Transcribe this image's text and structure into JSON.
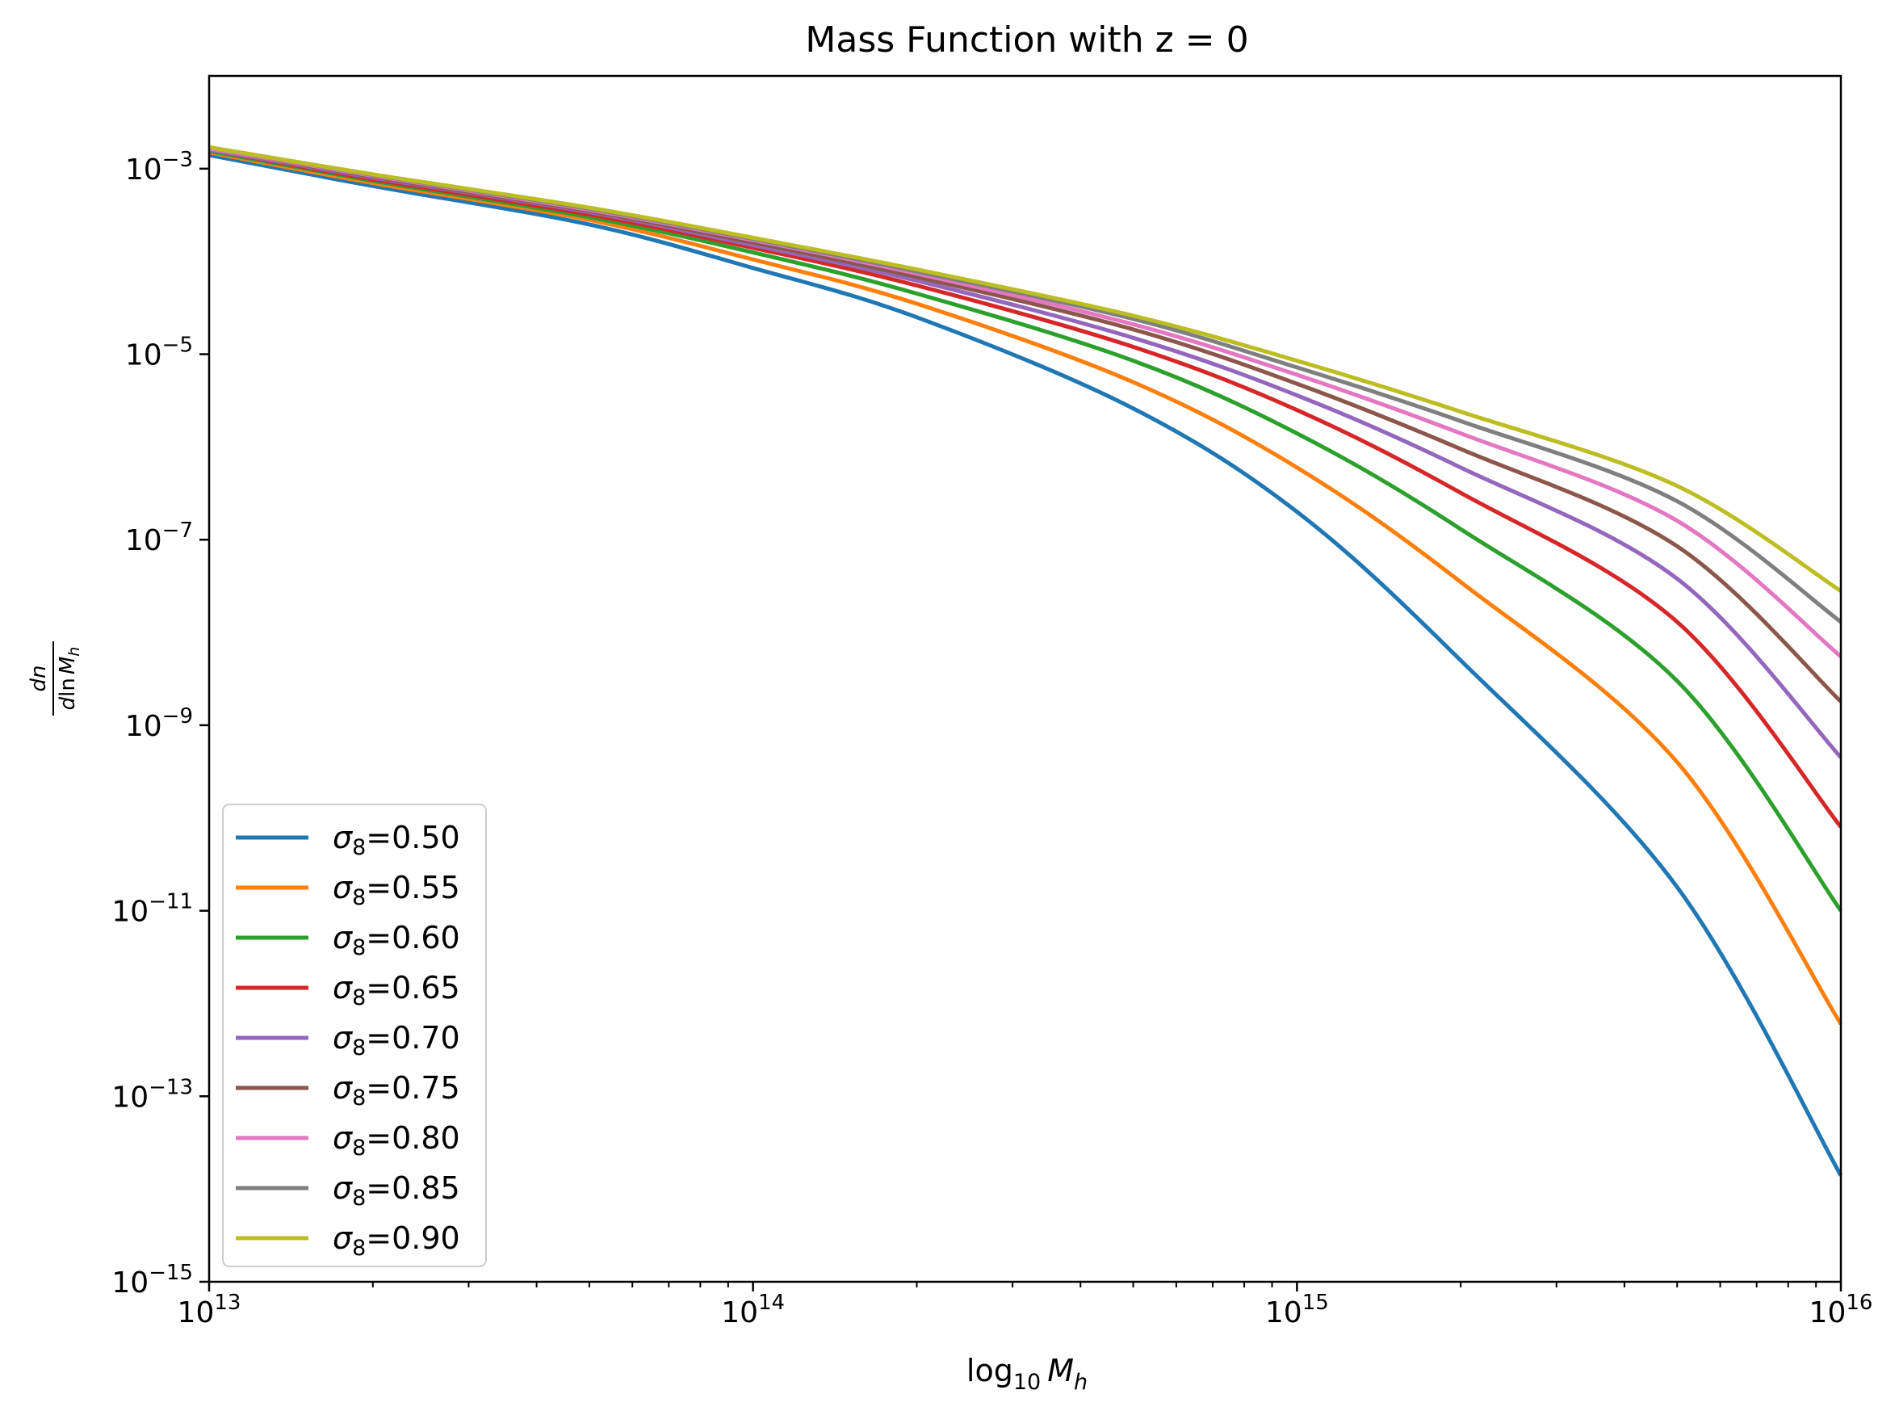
{
  "chart_data": {
    "type": "line",
    "title": "Mass Function with z = 0",
    "xlabel": {
      "base": "log",
      "sub": "10",
      "var": "M",
      "var_sub": "h"
    },
    "ylabel": {
      "num": "dn",
      "den_prefix": "d",
      "den_ln": "ln",
      "den_var": "M",
      "den_sub": "h"
    },
    "xscale": "log",
    "yscale": "log",
    "xlim": [
      10000000000000.0,
      1e+16
    ],
    "ylim": [
      1e-15,
      0.01
    ],
    "x_ticks": [
      {
        "base": "10",
        "exp": "13",
        "value": 10000000000000.0
      },
      {
        "base": "10",
        "exp": "14",
        "value": 100000000000000.0
      },
      {
        "base": "10",
        "exp": "15",
        "value": 1000000000000000.0
      },
      {
        "base": "10",
        "exp": "16",
        "value": 1e+16
      }
    ],
    "y_ticks": [
      {
        "base": "10",
        "exp": "−3",
        "value": 0.001
      },
      {
        "base": "10",
        "exp": "−5",
        "value": 1e-05
      },
      {
        "base": "10",
        "exp": "−7",
        "value": 1e-07
      },
      {
        "base": "10",
        "exp": "−9",
        "value": 1e-09
      },
      {
        "base": "10",
        "exp": "−11",
        "value": 1e-11
      },
      {
        "base": "10",
        "exp": "−13",
        "value": 1e-13
      },
      {
        "base": "10",
        "exp": "−15",
        "value": 1e-15
      }
    ],
    "grid": false,
    "legend_position": "lower-left",
    "x": [
      10000000000000.0,
      20000000000000.0,
      50000000000000.0,
      100000000000000.0,
      200000000000000.0,
      500000000000000.0,
      1000000000000000.0,
      2000000000000000.0,
      5000000000000000.0,
      1e+16
    ],
    "series": [
      {
        "name": "0.50",
        "symbol": "σ",
        "sub": "8",
        "color": "#1f77b4",
        "values": [
          0.0014,
          0.00065,
          0.00025,
          8.5e-05,
          2.5e-05,
          2.6e-06,
          2e-07,
          5e-09,
          1.8e-11,
          1.4e-14
        ]
      },
      {
        "name": "0.55",
        "symbol": "σ",
        "sub": "8",
        "color": "#ff7f0e",
        "values": [
          0.0015,
          0.0007,
          0.00028,
          0.000105,
          3.5e-05,
          5e-06,
          6e-07,
          3.5e-08,
          4e-10,
          6e-13
        ]
      },
      {
        "name": "0.60",
        "symbol": "σ",
        "sub": "8",
        "color": "#2ca02c",
        "values": [
          0.00155,
          0.00074,
          0.0003,
          0.000125,
          4.5e-05,
          8.5e-06,
          1.4e-06,
          1.3e-07,
          3e-09,
          1e-11
        ]
      },
      {
        "name": "0.65",
        "symbol": "σ",
        "sub": "8",
        "color": "#d62728",
        "values": [
          0.0016,
          0.00077,
          0.00032,
          0.00014,
          5.5e-05,
          1.2e-05,
          2.5e-06,
          3.2e-07,
          1.3e-08,
          8e-11
        ]
      },
      {
        "name": "0.70",
        "symbol": "σ",
        "sub": "8",
        "color": "#9467bd",
        "values": [
          0.0016,
          0.0008,
          0.00034,
          0.00015,
          6.2e-05,
          1.5e-05,
          3.6e-06,
          6e-07,
          3.8e-08,
          4.5e-10
        ]
      },
      {
        "name": "0.75",
        "symbol": "σ",
        "sub": "8",
        "color": "#8c564b",
        "values": [
          0.00165,
          0.00082,
          0.00035,
          0.00016,
          6.8e-05,
          1.85e-05,
          4.8e-06,
          9.5e-07,
          8.5e-08,
          1.8e-09
        ]
      },
      {
        "name": "0.80",
        "symbol": "σ",
        "sub": "8",
        "color": "#e377c2",
        "values": [
          0.00165,
          0.00084,
          0.00036,
          0.00017,
          7.4e-05,
          2.1e-05,
          6e-06,
          1.4e-06,
          1.6e-07,
          5.5e-09
        ]
      },
      {
        "name": "0.85",
        "symbol": "σ",
        "sub": "8",
        "color": "#7f7f7f",
        "values": [
          0.0017,
          0.00086,
          0.00037,
          0.000175,
          7.8e-05,
          2.4e-05,
          7.2e-06,
          1.9e-06,
          2.6e-07,
          1.3e-08
        ]
      },
      {
        "name": "0.90",
        "symbol": "σ",
        "sub": "8",
        "color": "#bcbd22",
        "values": [
          0.0017,
          0.00087,
          0.00038,
          0.00018,
          8.2e-05,
          2.6e-05,
          8.5e-06,
          2.4e-06,
          3.8e-07,
          2.8e-08
        ]
      }
    ]
  }
}
